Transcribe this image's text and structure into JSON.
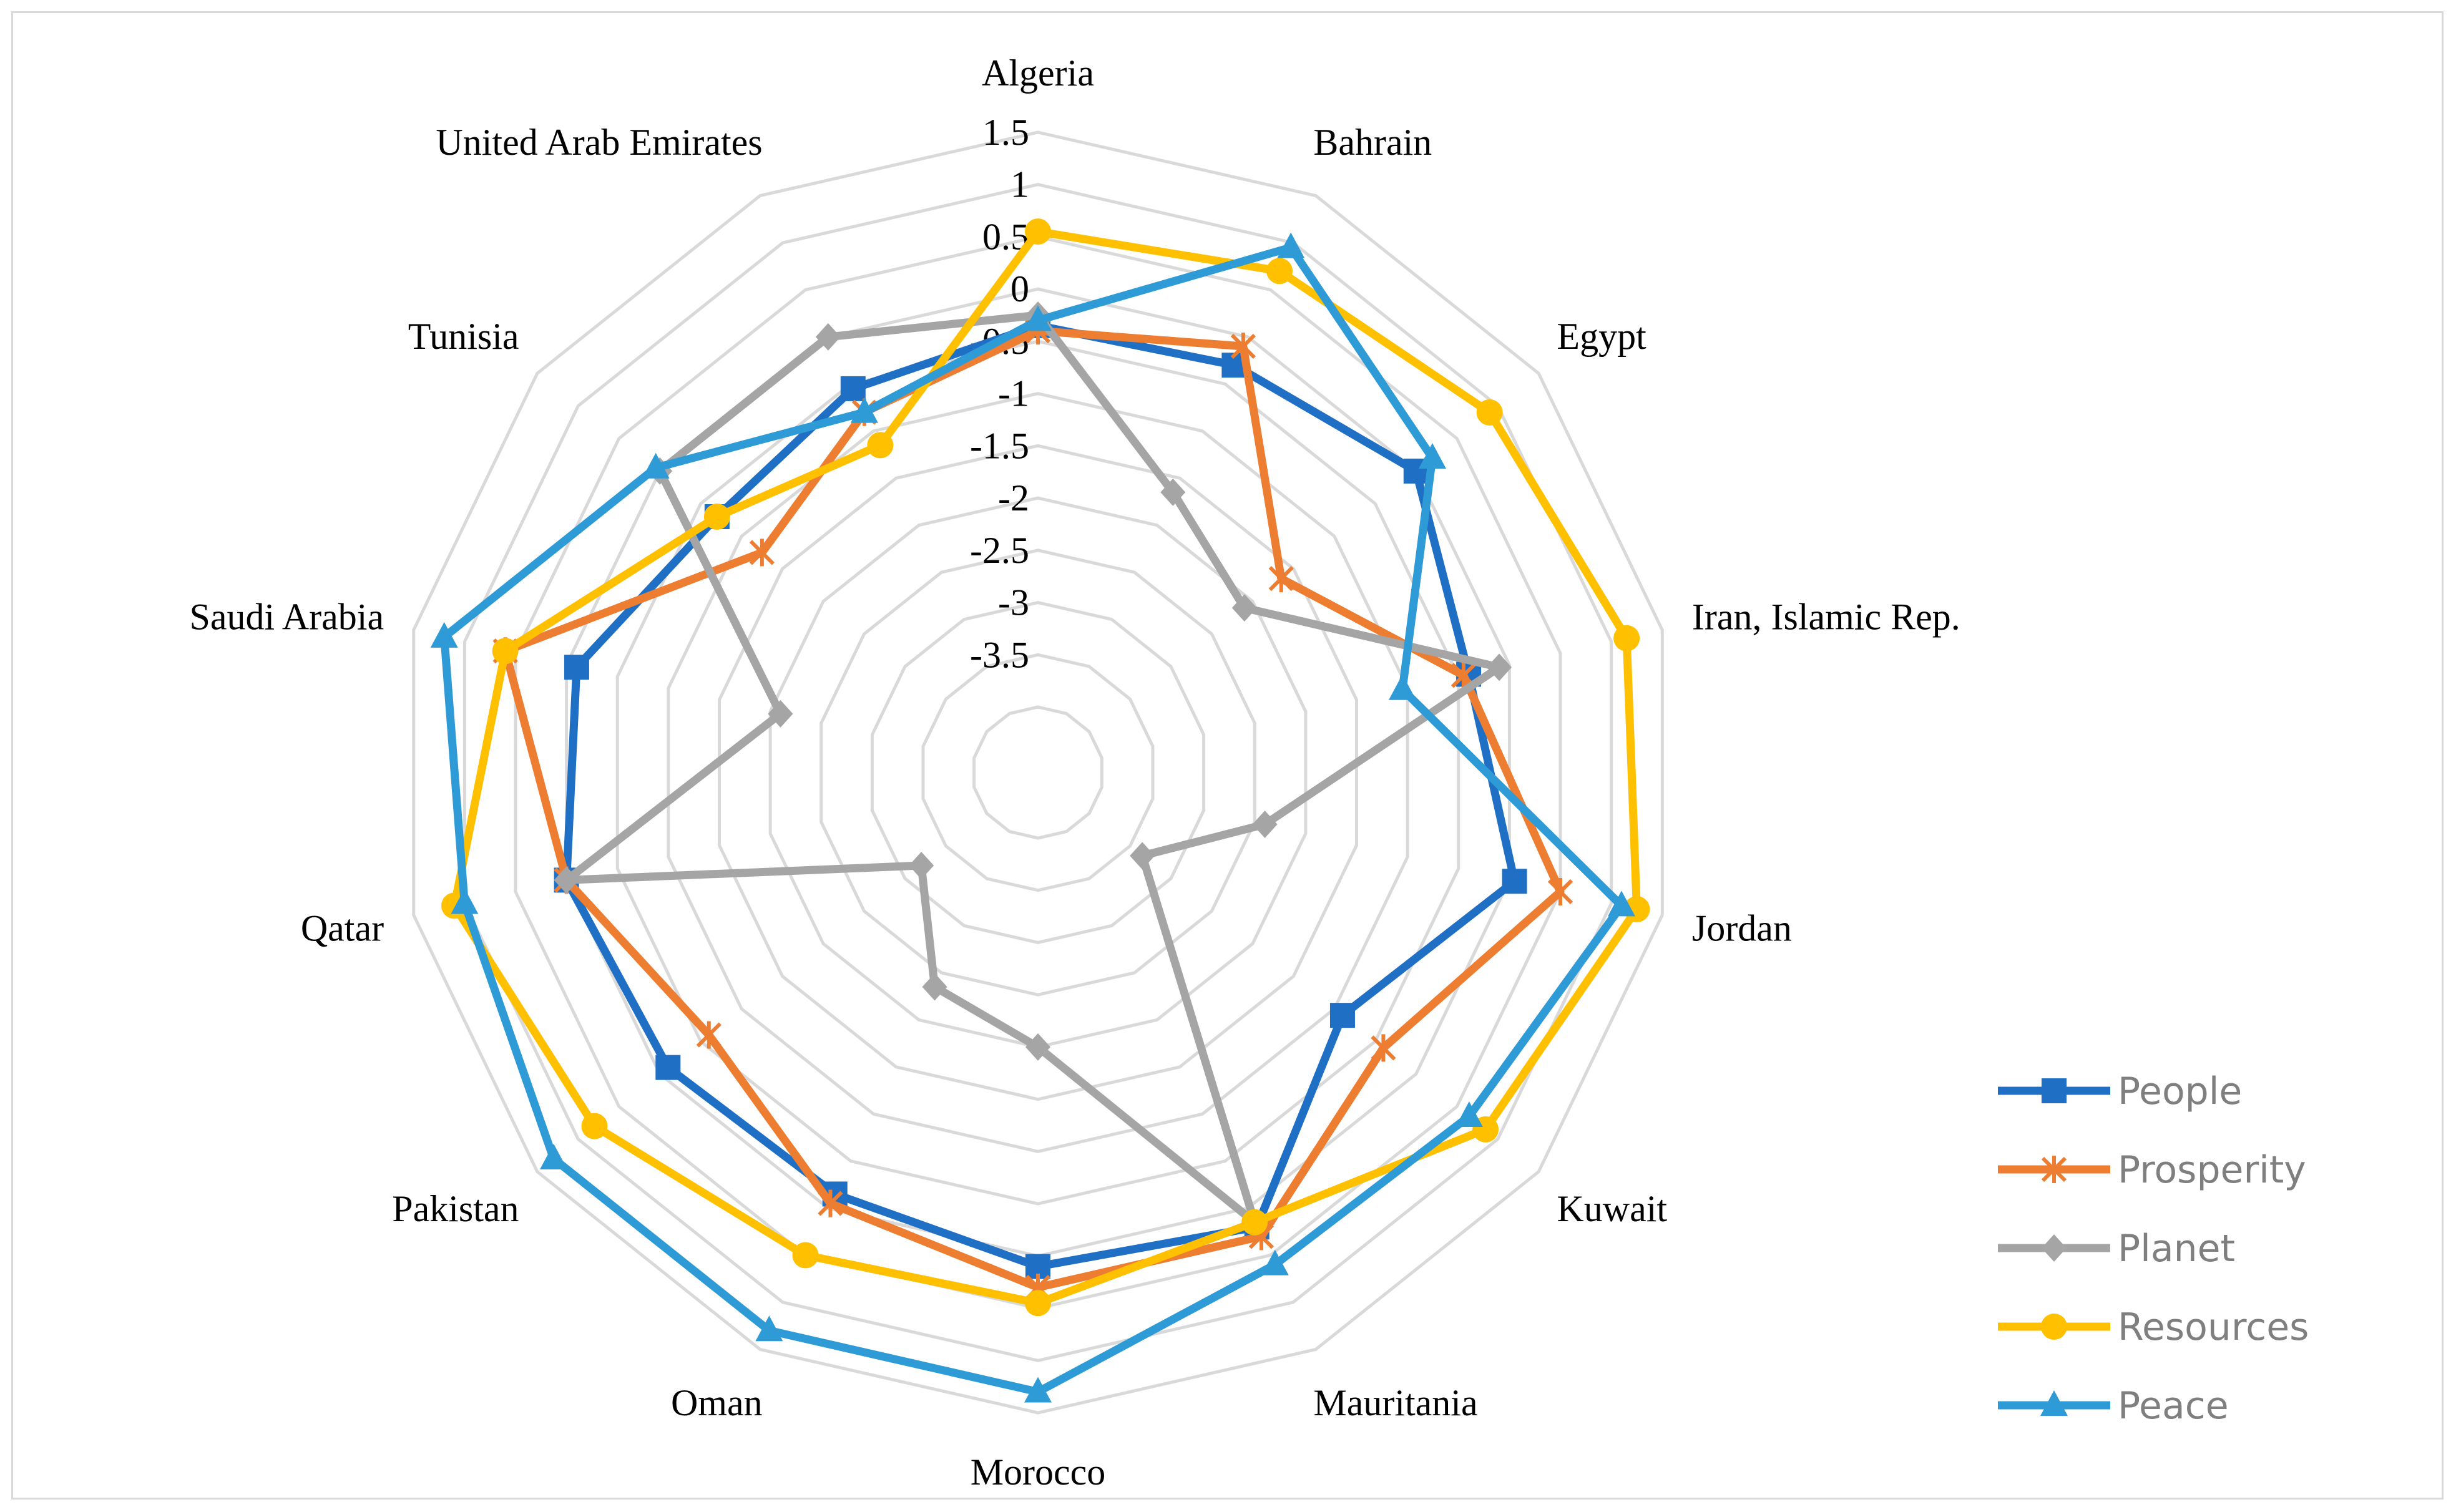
{
  "chart_data": {
    "type": "radar",
    "categories": [
      "Algeria",
      "Bahrain",
      "Egypt",
      "Iran, Islamic Rep.",
      "Jordan",
      "Kuwait",
      "Mauritania",
      "Morocco",
      "Oman",
      "Pakistan",
      "Qatar",
      "Saudi Arabia",
      "Tunisia",
      "United Arab Emirates"
    ],
    "rlim": [
      -4,
      1.5
    ],
    "ticks": [
      1.5,
      1,
      0.5,
      0,
      -0.5,
      -1,
      -1.5,
      -2,
      -2.5,
      -3,
      -3.5
    ],
    "tick_labels": [
      "1.5",
      "1",
      "0.5",
      "0",
      "-0.5",
      "-1",
      "-1.5",
      "-2",
      "-2.5",
      "-3",
      "-3.5"
    ],
    "grid": true,
    "legend_position": "right-bottom",
    "series": [
      {
        "name": "People",
        "color": "#1f6fc5",
        "marker": "square",
        "values": [
          -0.35,
          -0.3,
          0.0,
          -0.4,
          0.05,
          -0.9,
          0.2,
          0.1,
          -0.15,
          -0.1,
          0.0,
          -0.1,
          -0.7,
          -0.55
        ]
      },
      {
        "name": "Prosperity",
        "color": "#ed7d31",
        "marker": "star",
        "values": [
          -0.4,
          -0.1,
          -1.65,
          -0.45,
          0.5,
          -0.4,
          0.3,
          0.3,
          -0.05,
          -0.6,
          0.0,
          0.6,
          -1.25,
          -0.8
        ]
      },
      {
        "name": "Planet",
        "color": "#a5a5a5",
        "marker": "diamond",
        "values": [
          -0.25,
          -1.65,
          -2.1,
          -0.1,
          -2.4,
          -3.35,
          0.15,
          -2.0,
          -2.35,
          -3.2,
          0.0,
          -2.1,
          0.0,
          0.0
        ]
      },
      {
        "name": "Resources",
        "color": "#ffc000",
        "marker": "circle",
        "values": [
          0.55,
          0.7,
          0.9,
          1.15,
          1.25,
          0.85,
          0.15,
          0.45,
          0.5,
          0.8,
          1.1,
          0.6,
          -0.7,
          -1.15
        ]
      },
      {
        "name": "Peace",
        "color": "#2e9bd6",
        "marker": "triangle",
        "values": [
          -0.3,
          0.95,
          0.2,
          -1.05,
          1.1,
          0.65,
          0.6,
          1.3,
          1.3,
          1.3,
          1.0,
          1.2,
          0.05,
          -0.8
        ]
      }
    ]
  }
}
